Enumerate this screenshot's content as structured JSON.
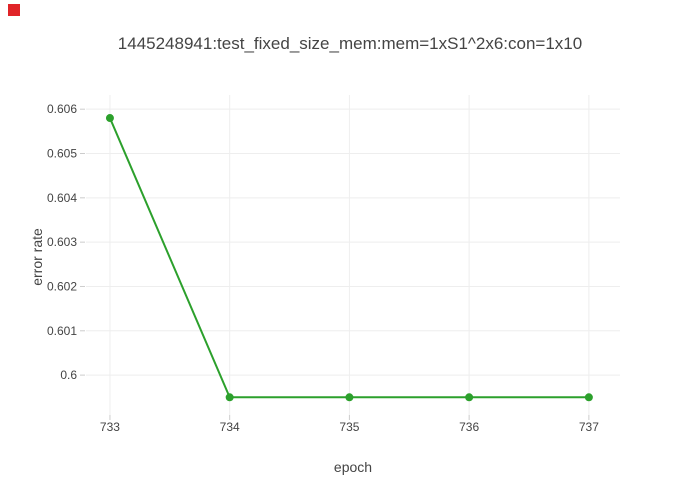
{
  "page": {
    "background_color": "#ffffff",
    "badge_color": "#e02428"
  },
  "chart_data": {
    "type": "line",
    "title": "1445248941:test_fixed_size_mem:mem=1xS1^2x6:con=1x10",
    "xlabel": "epoch",
    "ylabel": "error rate",
    "x": [
      733,
      734,
      735,
      736,
      737
    ],
    "y": [
      0.6058,
      0.5995,
      0.5995,
      0.5995,
      0.5995
    ],
    "xlim": [
      732.8,
      737.26
    ],
    "ylim": [
      0.5991,
      0.60632
    ],
    "xticks": {
      "values": [
        733,
        734,
        735,
        736,
        737
      ],
      "labels": [
        "733",
        "734",
        "735",
        "736",
        "737"
      ]
    },
    "yticks": {
      "values": [
        0.606,
        0.605,
        0.604,
        0.603,
        0.602,
        0.601,
        0.6
      ],
      "labels": [
        "0.606",
        "0.605",
        "0.604",
        "0.603",
        "0.602",
        "0.601",
        "0.6"
      ]
    },
    "grid": true,
    "legend": false,
    "line_color": "#2ca02c",
    "line_width": 2,
    "marker_size": 8,
    "grid_color": "#eeeeee",
    "tick_color": "#cccccc",
    "text_color": "#444444",
    "tick_font_size": 12
  }
}
